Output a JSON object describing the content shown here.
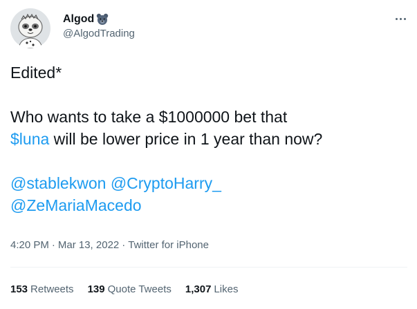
{
  "user": {
    "display_name": "Algod",
    "handle": "@AlgodTrading",
    "avatar_icon": "sloth-avatar",
    "badge_icon": "bear-emoji-badge"
  },
  "menu": {
    "icon": "more-horizontal-icon"
  },
  "tweet": {
    "line1": "Edited*",
    "line2": "Who wants to take a $1000000 bet that",
    "cashtag": "$luna",
    "line3_rest": " will be lower price in 1 year than now?",
    "mention1": "@stablekwon",
    "mention2": "@CryptoHarry_",
    "mention3": "@ZeMariaMacedo"
  },
  "meta": {
    "time": "4:20 PM",
    "date": "Mar 13, 2022",
    "source": "Twitter for iPhone",
    "separator": "·"
  },
  "stats": {
    "retweets_count": "153",
    "retweets_label": "Retweets",
    "quotes_count": "139",
    "quotes_label": "Quote Tweets",
    "likes_count": "1,307",
    "likes_label": "Likes"
  },
  "colors": {
    "text": "#0f1419",
    "secondary": "#536471",
    "link": "#1d9bf0",
    "divider": "#eff3f4"
  }
}
